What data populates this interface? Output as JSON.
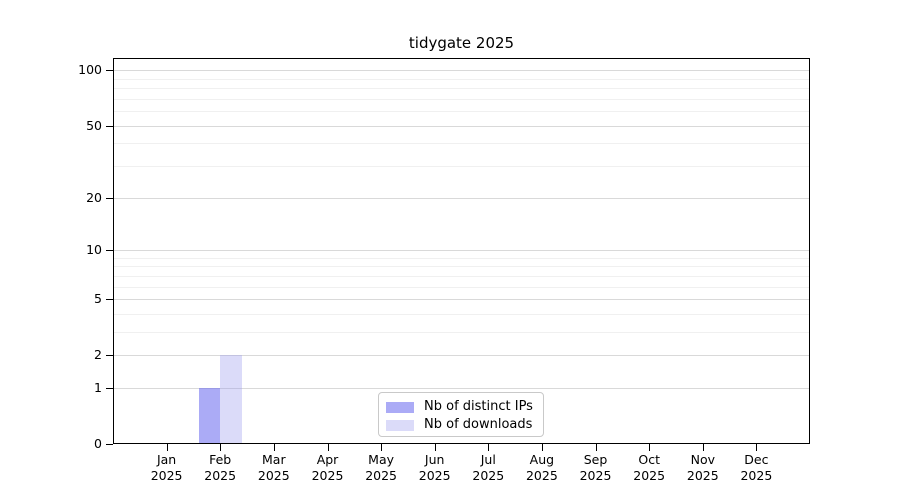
{
  "chart_data": {
    "type": "bar",
    "title": "tidygate 2025",
    "months": [
      "Jan",
      "Feb",
      "Mar",
      "Apr",
      "May",
      "Jun",
      "Jul",
      "Aug",
      "Sep",
      "Oct",
      "Nov",
      "Dec"
    ],
    "year_label": "2025",
    "series": [
      {
        "name": "Nb of distinct IPs",
        "color": "#6666ee",
        "alpha": 0.55,
        "values": [
          0,
          1,
          0,
          0,
          0,
          0,
          0,
          0,
          0,
          0,
          0,
          0
        ]
      },
      {
        "name": "Nb of downloads",
        "color": "#9999ee",
        "alpha": 0.35,
        "values": [
          0,
          2,
          0,
          0,
          0,
          0,
          0,
          0,
          0,
          0,
          0,
          0
        ]
      }
    ],
    "y_scale": "log10(1+x)",
    "y_major_ticks": [
      0,
      1,
      2,
      5,
      10,
      20,
      50,
      100
    ],
    "y_minor_gridlines": [
      3,
      4,
      6,
      7,
      8,
      9,
      30,
      40,
      60,
      70,
      80,
      90
    ],
    "ylim": [
      0,
      116
    ],
    "grid": "horizontal",
    "legend_position": "lower center"
  },
  "colors": {
    "background": "#ffffff",
    "spine": "#000000",
    "grid_major": "#d9d9d9",
    "grid_minor": "#f0f0f0",
    "legend_border": "#c9c9c9",
    "text": "#000000"
  }
}
